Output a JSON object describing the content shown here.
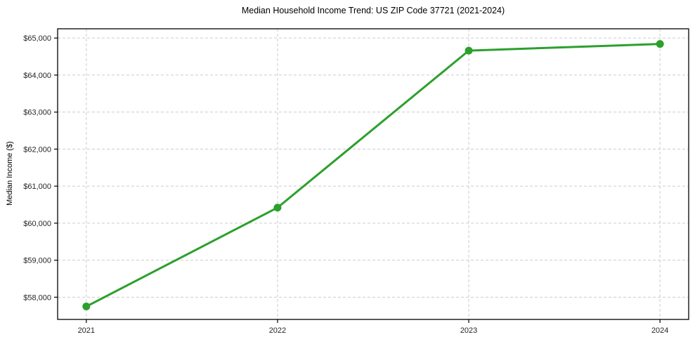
{
  "chart": {
    "title": "Median Household Income Trend: US ZIP Code 37721 (2021-2024)",
    "ylabel": "Median Income ($)"
  },
  "chart_data": {
    "type": "line",
    "title": "Median Household Income Trend: US ZIP Code 37721 (2021-2024)",
    "xlabel": "",
    "ylabel": "Median Income ($)",
    "x": [
      2021,
      2022,
      2023,
      2024
    ],
    "values": [
      57750,
      60420,
      64660,
      64840
    ],
    "series_name": "median-household-income",
    "xticks": [
      2021,
      2022,
      2023,
      2024
    ],
    "xtick_labels": [
      "2021",
      "2022",
      "2023",
      "2024"
    ],
    "yticks": [
      58000,
      59000,
      60000,
      61000,
      62000,
      63000,
      64000,
      65000
    ],
    "ytick_labels": [
      "$58,000",
      "$59,000",
      "$60,000",
      "$61,000",
      "$62,000",
      "$63,000",
      "$64,000",
      "$65,000"
    ],
    "xlim": [
      2020.85,
      2024.15
    ],
    "ylim": [
      57400,
      65250
    ],
    "grid": true,
    "grid_style": "dashed",
    "legend": false,
    "line_color": "#2ca02c",
    "marker": "o",
    "marker_diameter": 11,
    "line_width": 3,
    "grid_color": "#cccccc",
    "tick_color": "#000000",
    "text_color": "#262626",
    "border_color": "#000000",
    "background": "#ffffff"
  }
}
